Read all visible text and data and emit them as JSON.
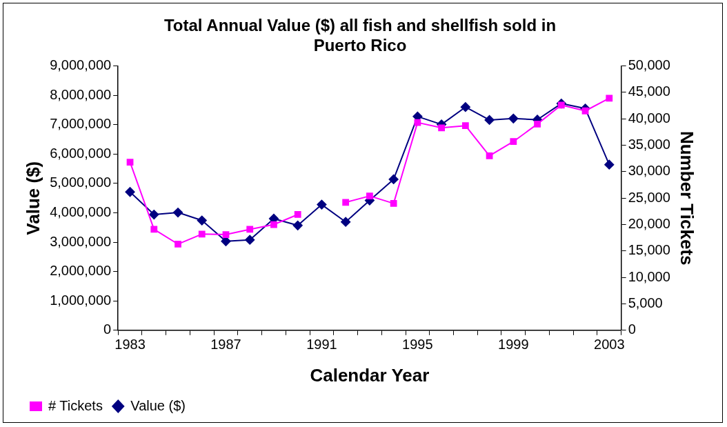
{
  "chart_data": {
    "type": "line",
    "title": "Total Annual Value ($) all fish and shellfish sold in Puerto Rico",
    "xlabel": "Calendar Year",
    "ylabel": "Value ($)",
    "y2label": "Number Tickets",
    "categories": [
      "1983",
      null,
      null,
      null,
      "1987",
      null,
      null,
      null,
      "1991",
      null,
      null,
      null,
      "1995",
      null,
      null,
      null,
      "1999",
      null,
      null,
      null,
      "2003"
    ],
    "series": [
      {
        "name": "Value ($)",
        "color": "#000080",
        "marker": "diamond",
        "values": [
          4710000,
          3940000,
          4010000,
          3740000,
          3030000,
          3080000,
          3800000,
          3570000,
          4280000,
          3690000,
          4420000,
          5140000,
          7280000,
          7010000,
          7600000,
          7160000,
          7210000,
          7170000,
          7720000,
          7550000,
          5640000
        ]
      },
      {
        "name": "# Tickets",
        "color": "#ff00ff",
        "marker": "square",
        "axis": "y2",
        "values": [
          31800,
          19100,
          16300,
          18200,
          18100,
          19100,
          20000,
          21900,
          null,
          24200,
          25400,
          24000,
          39300,
          38300,
          38700,
          33000,
          35700,
          39000,
          42600,
          41500,
          43900
        ]
      }
    ],
    "ylim": [
      0,
      9000000
    ],
    "yticks": [
      {
        "value": 0,
        "label": "0"
      },
      {
        "value": 1000000,
        "label": "1,000,000"
      },
      {
        "value": 2000000,
        "label": "2,000,000"
      },
      {
        "value": 3000000,
        "label": "3,000,000"
      },
      {
        "value": 4000000,
        "label": "4,000,000"
      },
      {
        "value": 5000000,
        "label": "5,000,000"
      },
      {
        "value": 6000000,
        "label": "6,000,000"
      },
      {
        "value": 7000000,
        "label": "7,000,000"
      },
      {
        "value": 8000000,
        "label": "8,000,000"
      },
      {
        "value": 9000000,
        "label": "9,000,000"
      }
    ],
    "y2lim": [
      0,
      50000
    ],
    "y2ticks": [
      {
        "value": 0,
        "label": "0"
      },
      {
        "value": 5000,
        "label": "5,000"
      },
      {
        "value": 10000,
        "label": "10,000"
      },
      {
        "value": 15000,
        "label": "15,000"
      },
      {
        "value": 20000,
        "label": "20,000"
      },
      {
        "value": 25000,
        "label": "25,000"
      },
      {
        "value": 30000,
        "label": "30,000"
      },
      {
        "value": 35000,
        "label": "35,000"
      },
      {
        "value": 40000,
        "label": "40,000"
      },
      {
        "value": 45000,
        "label": "45,000"
      },
      {
        "value": 50000,
        "label": "50,000"
      }
    ],
    "grid": false,
    "legend": "bottom left",
    "line_style": "solid"
  }
}
